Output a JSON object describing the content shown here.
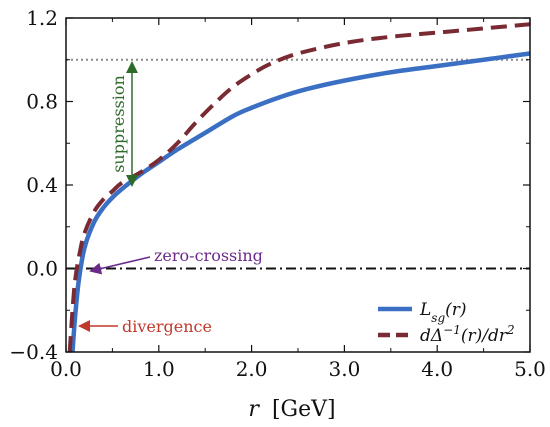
{
  "chart_data": {
    "type": "line",
    "xlabel_var": "r",
    "xlabel_unit": "[GeV]",
    "ylabel": "",
    "xlim": [
      0,
      5
    ],
    "ylim": [
      -0.4,
      1.2
    ],
    "xticks": [
      0.0,
      1.0,
      2.0,
      3.0,
      4.0,
      5.0
    ],
    "xtick_labels": [
      "0.0",
      "1.0",
      "2.0",
      "3.0",
      "4.0",
      "5.0"
    ],
    "yticks": [
      -0.4,
      0.0,
      0.4,
      0.8,
      1.2
    ],
    "ytick_labels": [
      "−0.4",
      "0.0",
      "0.4",
      "0.8",
      "1.2"
    ],
    "grid": false,
    "legend_position": "bottom-right",
    "reference_lines": [
      {
        "y": 1.0,
        "style": "dotted",
        "color": "#8a8a8a"
      },
      {
        "y": 0.0,
        "style": "dash-dot",
        "color": "#111111"
      }
    ],
    "series": [
      {
        "name": "L_sg(r)",
        "legend_label_html": "L<tspan font-size='12' baseline-shift='sub'>sg</tspan>(r)",
        "color": "#3a6fc4",
        "style": "solid",
        "x": [
          0.07,
          0.1,
          0.14,
          0.2,
          0.3,
          0.4,
          0.5,
          0.6,
          0.8,
          1.0,
          1.2,
          1.5,
          1.8,
          2.0,
          2.3,
          2.6,
          3.0,
          3.5,
          4.0,
          4.5,
          5.0
        ],
        "y": [
          -0.4,
          -0.22,
          -0.05,
          0.1,
          0.22,
          0.29,
          0.34,
          0.38,
          0.45,
          0.51,
          0.57,
          0.65,
          0.73,
          0.77,
          0.82,
          0.86,
          0.9,
          0.94,
          0.97,
          1.0,
          1.03
        ]
      },
      {
        "name": "dΔ⁻¹(r)/dr²",
        "legend_label_html": "dΔ<tspan font-size='12' baseline-shift='super'>−1</tspan>(r)/dr<tspan font-size='12' baseline-shift='super'>2</tspan>",
        "color": "#7a2a32",
        "style": "dashed",
        "x": [
          0.04,
          0.07,
          0.1,
          0.15,
          0.2,
          0.3,
          0.4,
          0.5,
          0.6,
          0.8,
          1.0,
          1.2,
          1.4,
          1.6,
          1.8,
          2.0,
          2.2,
          2.5,
          3.0,
          3.5,
          4.0,
          4.5,
          5.0
        ],
        "y": [
          -0.4,
          -0.2,
          -0.05,
          0.08,
          0.17,
          0.27,
          0.33,
          0.37,
          0.41,
          0.46,
          0.52,
          0.6,
          0.7,
          0.79,
          0.87,
          0.93,
          0.98,
          1.03,
          1.08,
          1.11,
          1.13,
          1.15,
          1.17
        ]
      }
    ],
    "annotations": [
      {
        "text": "suppression",
        "color": "#2e6b2a"
      },
      {
        "text": "zero-crossing",
        "color": "#6a2a8a"
      },
      {
        "text": "divergence",
        "color": "#c0392b"
      }
    ]
  }
}
